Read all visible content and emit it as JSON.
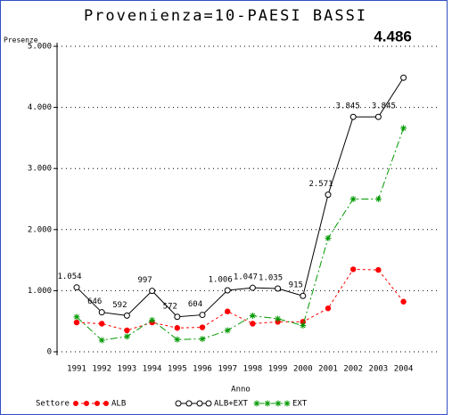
{
  "chart_data": {
    "type": "line",
    "title": "Provenienza=10-PAESI BASSI",
    "y_label": "Presenze",
    "x_label": "Anno",
    "legend_title": "Settore",
    "categories": [
      "1991",
      "1992",
      "1993",
      "1994",
      "1995",
      "1996",
      "1997",
      "1998",
      "1999",
      "2000",
      "2001",
      "2002",
      "2003",
      "2004"
    ],
    "series": [
      {
        "name": "ALB",
        "color": "#ff0000",
        "marker": "dot",
        "dash": "3 3",
        "values": [
          480,
          460,
          350,
          480,
          390,
          400,
          660,
          460,
          490,
          490,
          710,
          1350,
          1340,
          820
        ]
      },
      {
        "name": "ALB+EXT",
        "color": "#000000",
        "marker": "circle",
        "dash": "none",
        "values": [
          1054,
          646,
          592,
          997,
          572,
          604,
          1006,
          1047,
          1035,
          915,
          2571,
          3845,
          3845,
          4486
        ],
        "value_labels": [
          "1.054",
          "646",
          "592",
          "997",
          "572",
          "604",
          "1.006",
          "1.047",
          "1.035",
          "915",
          "2.571",
          "3.845",
          "3.845",
          "4.486"
        ]
      },
      {
        "name": "EXT",
        "color": "#009900",
        "marker": "star",
        "dash": "8 3 2 3",
        "values": [
          570,
          190,
          250,
          520,
          200,
          210,
          350,
          590,
          540,
          430,
          1860,
          2500,
          2500,
          3660
        ]
      }
    ],
    "ylim": [
      0,
      5000
    ],
    "yticks": [
      {
        "value": 0,
        "label": "0"
      },
      {
        "value": 1000,
        "label": "1.000"
      },
      {
        "value": 2000,
        "label": "2.000"
      },
      {
        "value": 3000,
        "label": "3.000"
      },
      {
        "value": 4000,
        "label": "4.000"
      },
      {
        "value": 5000,
        "label": "5.000"
      }
    ],
    "grid": true,
    "legend": "bottom"
  }
}
